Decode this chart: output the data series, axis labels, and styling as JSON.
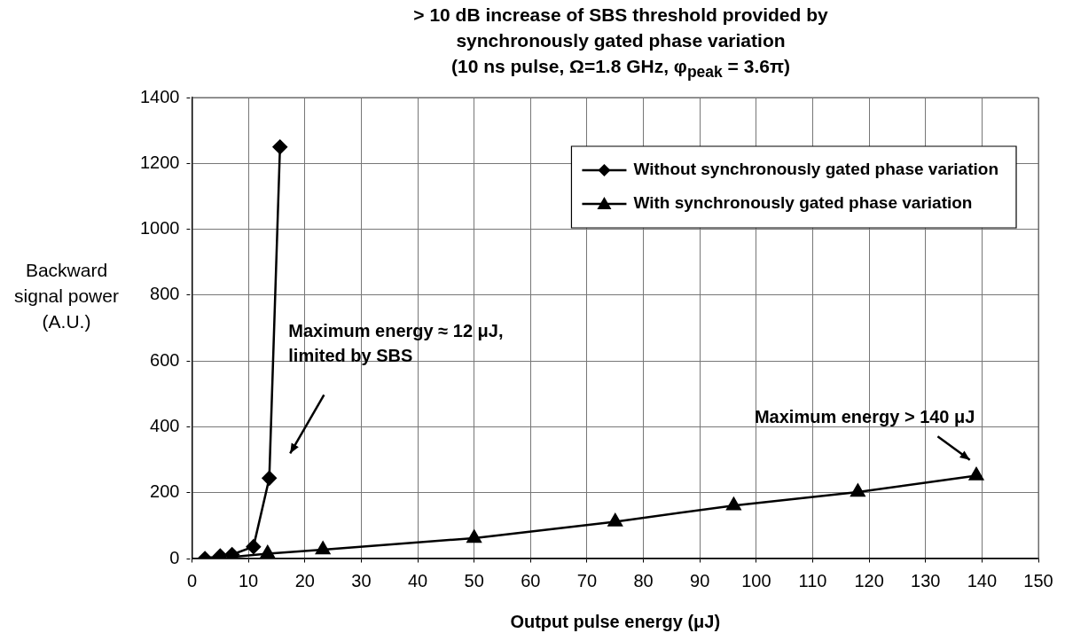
{
  "chart_data": {
    "type": "line",
    "title": "> 10 dB increase of SBS threshold provided by\nsynchronously gated phase variation\n(10 ns pulse, Ω=1.8 GHz, φ$_{peak}$ = 3.6π)",
    "xlabel": "Output pulse energy (μJ)",
    "ylabel": "Backward signal power (A.U.)",
    "xlim": [
      0,
      150
    ],
    "xticks": [
      0,
      10,
      20,
      30,
      40,
      50,
      60,
      70,
      80,
      90,
      100,
      110,
      120,
      130,
      140,
      150
    ],
    "ylim": [
      0,
      1400
    ],
    "yticks": [
      0,
      200,
      400,
      600,
      800,
      1000,
      1200,
      1400
    ],
    "grid": true,
    "legend": "top right",
    "line_style": "solid",
    "series": [
      {
        "name": "Without synchronously gated phase variation",
        "color": "#000000",
        "marker": "diamond",
        "x": [
          2.3,
          5,
          7.1,
          10.9,
          13.7,
          15.6
        ],
        "values": [
          0,
          8,
          12,
          36,
          244,
          1250
        ]
      },
      {
        "name": "With synchronously gated phase variation",
        "color": "#000000",
        "marker": "triangle",
        "x": [
          7.1,
          13.4,
          23.2,
          50,
          75,
          96,
          118,
          139
        ],
        "values": [
          5,
          15,
          27,
          62,
          112,
          161,
          202,
          252
        ]
      }
    ],
    "annotations": [
      "Maximum energy ≈ 12 μJ,\nlimited by SBS",
      "Maximum energy > 140 μJ"
    ]
  }
}
